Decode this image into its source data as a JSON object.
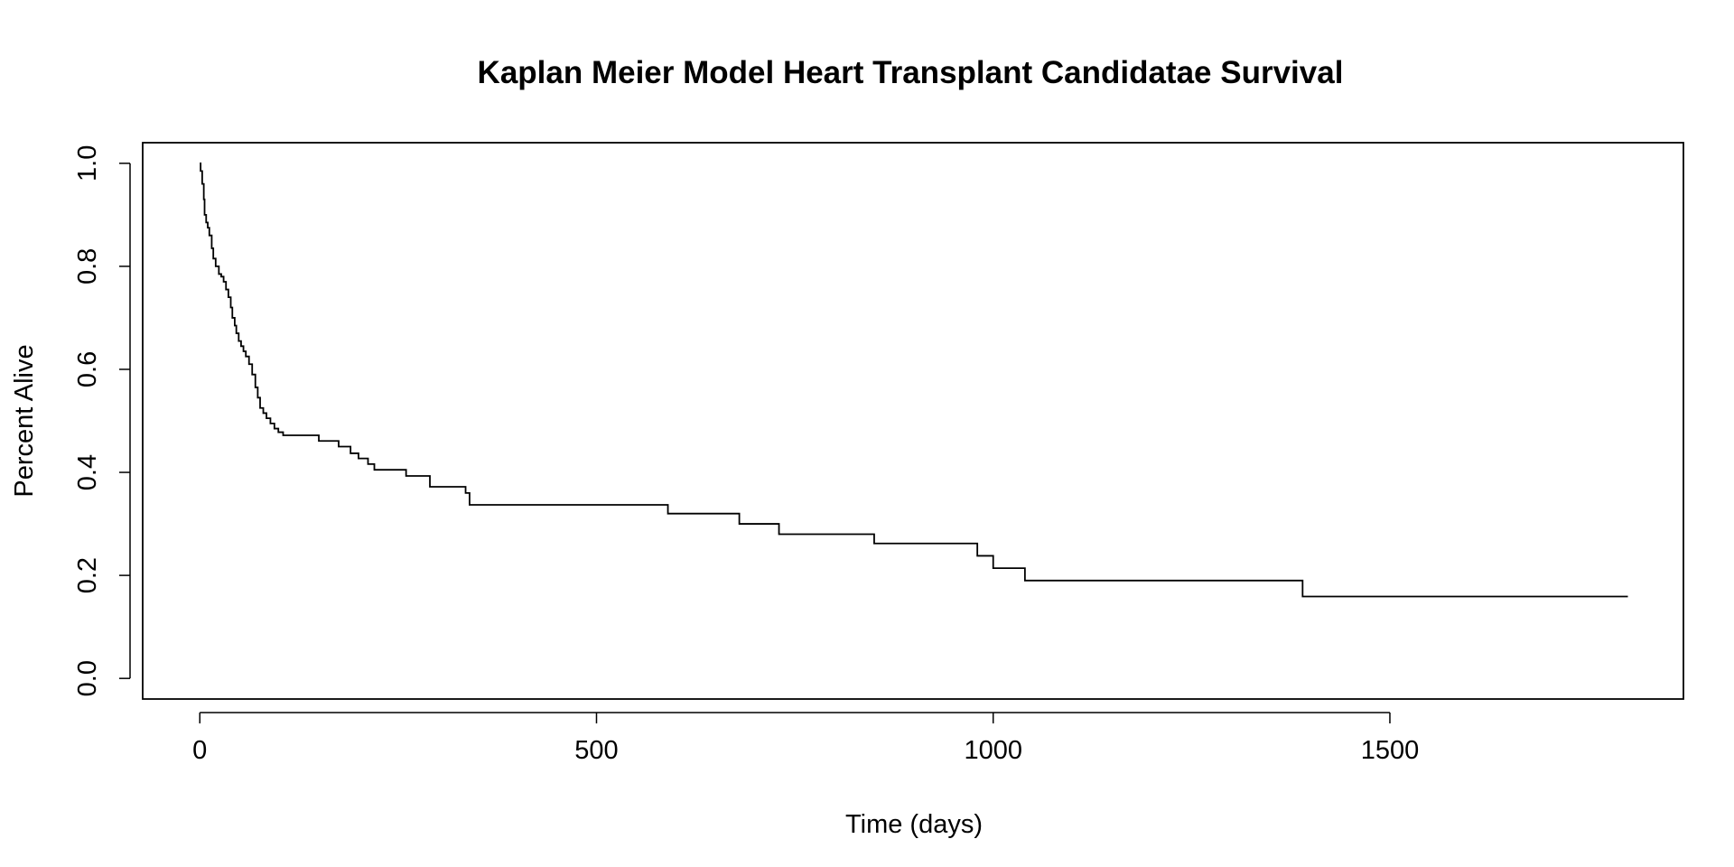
{
  "chart_data": {
    "type": "line",
    "step": true,
    "title": "Kaplan Meier Model Heart Transplant Candidatae Survival",
    "xlabel": "Time (days)",
    "ylabel": "Percent Alive",
    "xlim": [
      -72,
      1870
    ],
    "ylim": [
      -0.04,
      1.04
    ],
    "x_ticks": [
      0,
      500,
      1000,
      1500
    ],
    "y_ticks": [
      0.0,
      0.2,
      0.4,
      0.6,
      0.8,
      1.0
    ],
    "x_tick_labels": [
      "0",
      "500",
      "1000",
      "1500"
    ],
    "y_tick_labels": [
      "0.0",
      "0.2",
      "0.4",
      "0.6",
      "0.8",
      "1.0"
    ],
    "grid": false,
    "legend": "none",
    "color": "#000000",
    "series": [
      {
        "x": [
          0,
          1,
          3,
          5,
          6,
          8,
          10,
          12,
          15,
          17,
          20,
          24,
          27,
          30,
          33,
          36,
          39,
          41,
          44,
          46,
          49,
          52,
          55,
          58,
          62,
          66,
          70,
          73,
          76,
          80,
          84,
          89,
          94,
          99,
          105,
          115,
          150,
          160,
          175,
          185,
          190,
          200,
          212,
          220,
          260,
          280,
          290,
          330,
          335,
          340,
          350,
          580,
          590,
          670,
          680,
          720,
          730,
          840,
          850,
          970,
          980,
          990,
          1000,
          1030,
          1040,
          1380,
          1390,
          1800
        ],
        "y": [
          1.0,
          0.985,
          0.96,
          0.93,
          0.9,
          0.885,
          0.875,
          0.86,
          0.835,
          0.815,
          0.8,
          0.785,
          0.78,
          0.77,
          0.755,
          0.74,
          0.72,
          0.7,
          0.685,
          0.67,
          0.655,
          0.645,
          0.635,
          0.625,
          0.61,
          0.59,
          0.565,
          0.545,
          0.525,
          0.515,
          0.505,
          0.495,
          0.485,
          0.478,
          0.472,
          0.472,
          0.461,
          0.461,
          0.45,
          0.45,
          0.437,
          0.427,
          0.416,
          0.405,
          0.393,
          0.393,
          0.372,
          0.372,
          0.36,
          0.337,
          0.337,
          0.337,
          0.32,
          0.32,
          0.3,
          0.3,
          0.28,
          0.28,
          0.262,
          0.262,
          0.238,
          0.238,
          0.214,
          0.214,
          0.19,
          0.19,
          0.159,
          0.159
        ]
      }
    ]
  }
}
